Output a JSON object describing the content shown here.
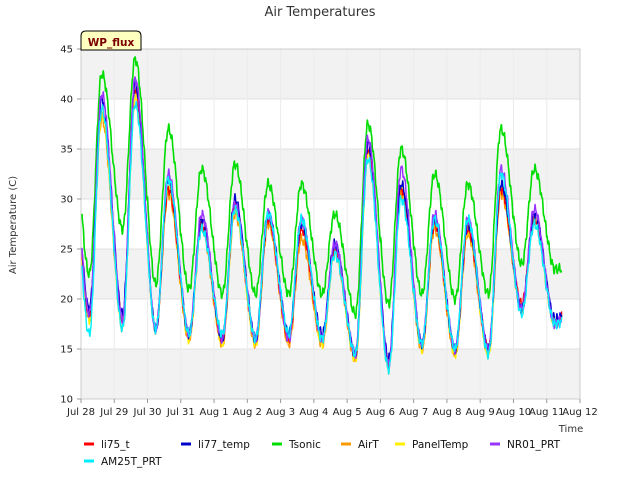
{
  "chart_data": {
    "type": "line",
    "title": "Air Temperatures",
    "xlabel": "Time",
    "ylabel": "Air Temperature (C)",
    "badge": "WP_flux",
    "x_tick_labels": [
      "Jul 28",
      "Jul 29",
      "Jul 30",
      "Jul 31",
      "Aug 1",
      "Aug 2",
      "Aug 3",
      "Aug 4",
      "Aug 5",
      "Aug 6",
      "Aug 7",
      "Aug 8",
      "Aug 9",
      "Aug 10",
      "Aug 11",
      "Aug 12"
    ],
    "xlim": [
      "2023-07-28",
      "2023-08-12"
    ],
    "ylim": [
      10,
      45
    ],
    "y_ticks": [
      10,
      15,
      20,
      25,
      30,
      35,
      40,
      45
    ],
    "grid": true,
    "legend_position": "bottom",
    "daily": {
      "days": [
        "Jul 28",
        "Jul 29",
        "Jul 30",
        "Jul 31",
        "Aug 1",
        "Aug 2",
        "Aug 3",
        "Aug 4",
        "Aug 5",
        "Aug 6",
        "Aug 7",
        "Aug 8",
        "Aug 9",
        "Aug 10",
        "Aug 11"
      ],
      "series": [
        {
          "name": "li75_t",
          "color": "#ff0000",
          "min": [
            18.5,
            18.0,
            17.0,
            16.5,
            16.0,
            16.0,
            16.0,
            16.0,
            14.5,
            13.5,
            15.5,
            15.0,
            15.0,
            19.5,
            17.5
          ],
          "max": [
            39.0,
            41.0,
            31.0,
            27.5,
            29.5,
            28.0,
            27.0,
            25.0,
            35.0,
            31.0,
            27.5,
            27.0,
            31.0,
            28.0,
            19.0
          ]
        },
        {
          "name": "li77_temp",
          "color": "#0000cc",
          "min": [
            19.0,
            18.5,
            17.0,
            16.5,
            16.0,
            16.0,
            16.5,
            16.5,
            14.5,
            14.0,
            15.5,
            15.0,
            15.0,
            19.0,
            18.0
          ],
          "max": [
            40.0,
            41.5,
            32.0,
            28.0,
            30.0,
            28.5,
            27.5,
            25.5,
            35.5,
            31.5,
            28.0,
            27.5,
            31.5,
            28.5,
            18.5
          ]
        },
        {
          "name": "Tsonic",
          "color": "#00dd00",
          "min": [
            22.5,
            27.0,
            21.5,
            21.0,
            20.5,
            20.5,
            20.5,
            20.5,
            18.5,
            19.5,
            20.5,
            20.0,
            20.5,
            23.5,
            23.0
          ],
          "max": [
            42.5,
            44.0,
            37.0,
            33.0,
            33.5,
            31.5,
            31.5,
            28.5,
            37.5,
            35.0,
            32.5,
            31.5,
            37.0,
            33.0,
            23.0
          ]
        },
        {
          "name": "AirT",
          "color": "#ff9900",
          "min": [
            18.0,
            17.0,
            17.0,
            16.0,
            15.5,
            15.5,
            15.5,
            15.5,
            14.0,
            13.0,
            15.0,
            14.5,
            14.5,
            19.0,
            17.5
          ],
          "max": [
            38.0,
            39.5,
            30.5,
            27.0,
            28.5,
            27.5,
            26.0,
            24.5,
            34.0,
            30.5,
            27.0,
            26.5,
            30.5,
            27.5,
            18.5
          ]
        },
        {
          "name": "PanelTemp",
          "color": "#ffee00",
          "min": [
            18.0,
            17.5,
            17.0,
            16.0,
            15.5,
            15.5,
            16.0,
            15.5,
            14.0,
            13.5,
            15.0,
            14.5,
            14.5,
            19.0,
            17.5
          ],
          "max": [
            38.5,
            40.0,
            31.0,
            28.0,
            29.0,
            28.5,
            27.5,
            25.0,
            34.5,
            31.0,
            27.5,
            27.0,
            31.0,
            28.0,
            18.5
          ]
        },
        {
          "name": "NR01_PRT",
          "color": "#9933ff",
          "min": [
            18.5,
            18.0,
            17.0,
            16.5,
            16.0,
            16.0,
            16.0,
            16.0,
            14.5,
            13.5,
            15.5,
            15.0,
            15.0,
            19.0,
            17.5
          ],
          "max": [
            40.5,
            42.0,
            32.5,
            28.5,
            29.5,
            28.5,
            28.0,
            25.5,
            36.0,
            33.0,
            28.5,
            28.0,
            33.0,
            29.0,
            18.5
          ]
        },
        {
          "name": "AM25T_PRT",
          "color": "#00eeff",
          "min": [
            16.5,
            17.0,
            17.0,
            16.5,
            16.5,
            16.0,
            16.5,
            16.0,
            14.5,
            13.0,
            15.5,
            15.0,
            14.5,
            18.5,
            17.5
          ],
          "max": [
            39.0,
            39.5,
            32.0,
            27.0,
            29.0,
            28.5,
            28.0,
            24.5,
            34.0,
            30.0,
            28.0,
            28.0,
            32.5,
            27.5,
            18.0
          ]
        }
      ]
    }
  }
}
